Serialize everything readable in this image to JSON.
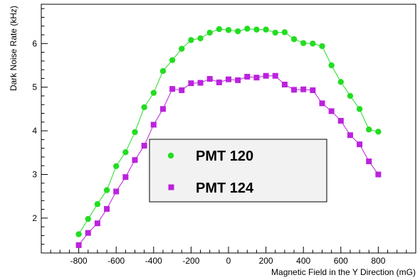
{
  "chart_data": {
    "type": "line",
    "xlabel": "Magnetic Field in the Y Direction (mG)",
    "ylabel": "Dark Noise Rate (kHz)",
    "xlim": [
      -1000,
      1000
    ],
    "ylim": [
      1.2,
      6.9
    ],
    "x_ticks": [
      -800,
      -600,
      -400,
      -200,
      0,
      200,
      400,
      600,
      800
    ],
    "y_ticks": [
      2,
      3,
      4,
      5,
      6
    ],
    "grid": false,
    "legend_position": "center",
    "series": [
      {
        "name": "PMT 120",
        "color": "#22dd22",
        "marker": "circle",
        "x": [
          -800,
          -750,
          -700,
          -650,
          -600,
          -550,
          -500,
          -450,
          -400,
          -350,
          -300,
          -250,
          -200,
          -150,
          -100,
          -50,
          0,
          50,
          100,
          150,
          200,
          250,
          300,
          350,
          400,
          450,
          500,
          550,
          600,
          650,
          700,
          750,
          800
        ],
        "values": [
          1.63,
          1.98,
          2.32,
          2.64,
          3.19,
          3.51,
          3.97,
          4.54,
          4.87,
          5.37,
          5.62,
          5.88,
          6.08,
          6.12,
          6.25,
          6.33,
          6.31,
          6.28,
          6.34,
          6.32,
          6.32,
          6.25,
          6.26,
          6.1,
          6.01,
          6.0,
          5.94,
          5.5,
          5.12,
          4.8,
          4.5,
          4.03,
          3.98
        ]
      },
      {
        "name": "PMT 124",
        "color": "#bb22dd",
        "marker": "square",
        "x": [
          -800,
          -750,
          -700,
          -650,
          -600,
          -550,
          -500,
          -450,
          -400,
          -350,
          -300,
          -250,
          -200,
          -150,
          -100,
          -50,
          0,
          50,
          100,
          150,
          200,
          250,
          300,
          350,
          400,
          450,
          500,
          550,
          600,
          650,
          700,
          750,
          800
        ],
        "values": [
          1.38,
          1.66,
          1.88,
          2.21,
          2.61,
          2.94,
          3.33,
          3.66,
          4.14,
          4.5,
          4.96,
          4.93,
          5.09,
          5.1,
          5.19,
          5.11,
          5.18,
          5.16,
          5.24,
          5.22,
          5.26,
          5.26,
          5.06,
          4.94,
          4.95,
          4.93,
          4.63,
          4.45,
          4.23,
          3.9,
          3.69,
          3.3,
          3.0
        ]
      }
    ]
  }
}
